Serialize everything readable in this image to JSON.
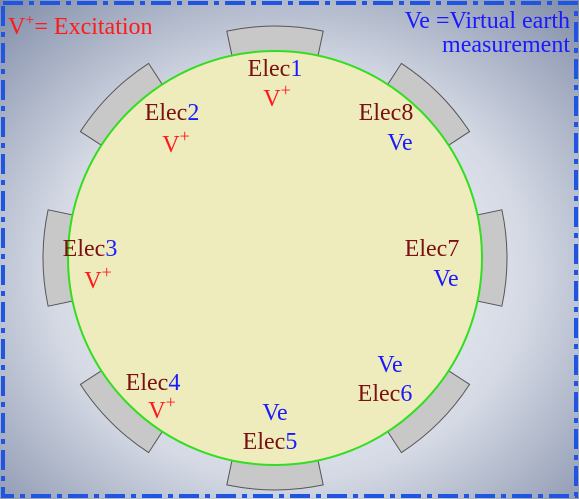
{
  "legend": {
    "excitation": {
      "symbol": "V",
      "sup": "+",
      "text": "= Excitation"
    },
    "virtual_earth": {
      "lines": [
        "Ve =Virtual earth",
        "measurement"
      ]
    }
  },
  "electrodes": [
    {
      "name": "Elec",
      "number": "1",
      "role": "V",
      "role_sup": "+"
    },
    {
      "name": "Elec",
      "number": "2",
      "role": "V",
      "role_sup": "+"
    },
    {
      "name": "Elec",
      "number": "3",
      "role": "V",
      "role_sup": "+"
    },
    {
      "name": "Elec",
      "number": "4",
      "role": "V",
      "role_sup": "+"
    },
    {
      "name": "Elec",
      "number": "5",
      "role": "Ve"
    },
    {
      "name": "Elec",
      "number": "6",
      "role": "Ve"
    },
    {
      "name": "Elec",
      "number": "7",
      "role": "Ve"
    },
    {
      "name": "Elec",
      "number": "8",
      "role": "Ve"
    }
  ]
}
